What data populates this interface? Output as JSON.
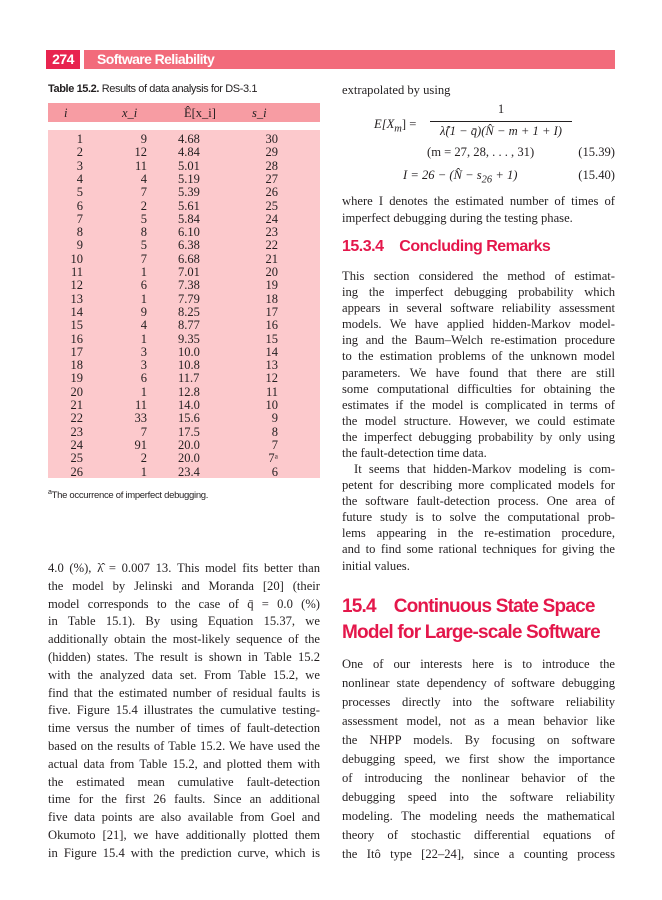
{
  "header": {
    "page_number": "274",
    "running_title": "Software Reliability"
  },
  "table": {
    "caption_label": "Table 15.2.",
    "caption_text": "Results of data analysis for DS-3.1",
    "columns": [
      "i",
      "x_i",
      "Ê[x_i]",
      "s_i"
    ],
    "rows": [
      [
        "1",
        "9",
        "4.68",
        "30"
      ],
      [
        "2",
        "12",
        "4.84",
        "29"
      ],
      [
        "3",
        "11",
        "5.01",
        "28"
      ],
      [
        "4",
        "4",
        "5.19",
        "27"
      ],
      [
        "5",
        "7",
        "5.39",
        "26"
      ],
      [
        "6",
        "2",
        "5.61",
        "25"
      ],
      [
        "7",
        "5",
        "5.84",
        "24"
      ],
      [
        "8",
        "8",
        "6.10",
        "23"
      ],
      [
        "9",
        "5",
        "6.38",
        "22"
      ],
      [
        "10",
        "7",
        "6.68",
        "21"
      ],
      [
        "11",
        "1",
        "7.01",
        "20"
      ],
      [
        "12",
        "6",
        "7.38",
        "19"
      ],
      [
        "13",
        "1",
        "7.79",
        "18"
      ],
      [
        "14",
        "9",
        "8.25",
        "17"
      ],
      [
        "15",
        "4",
        "8.77",
        "16"
      ],
      [
        "16",
        "1",
        "9.35",
        "15"
      ],
      [
        "17",
        "3",
        "10.0",
        "14"
      ],
      [
        "18",
        "3",
        "10.8",
        "13"
      ],
      [
        "19",
        "6",
        "11.7",
        "12"
      ],
      [
        "20",
        "1",
        "12.8",
        "11"
      ],
      [
        "21",
        "11",
        "14.0",
        "10"
      ],
      [
        "22",
        "33",
        "15.6",
        "9"
      ],
      [
        "23",
        "7",
        "17.5",
        "8"
      ],
      [
        "24",
        "91",
        "20.0",
        "7"
      ],
      [
        "25",
        "2",
        "20.0",
        "7ᵃ"
      ],
      [
        "26",
        "1",
        "23.4",
        "6"
      ]
    ],
    "footnote_mark": "a",
    "footnote": "The occurrence of imperfect debugging."
  },
  "left_paragraph": [
    "4.0 (%), λ̂ = 0.007 13. This model fits better than",
    "the model by Jelinski and Moranda [20] (their",
    "model corresponds to the case of q̄ = 0.0 (%)",
    "in Table 15.1). By using Equation 15.37, we",
    "additionally obtain the most-likely sequence of the",
    "(hidden) states. The result is shown in Table 15.2",
    "with the analyzed data set. From Table 15.2, we",
    "find that the estimated number of residual faults is",
    "five. Figure 15.4 illustrates the cumulative testing-",
    "time versus the number of times of fault-detection",
    "based on the results of Table 15.2. We have used the",
    "actual data from Table 15.2, and plotted them with",
    "the estimated mean cumulative fault-detection",
    "time for the first 26 faults. Since an additional",
    "five data points are also available from Goel and",
    "Okumoto [21], we have additionally plotted them",
    "in Figure 15.4 with the prediction curve, which is"
  ],
  "right": {
    "intro": "extrapolated by using",
    "eq1_lhs": "E[X",
    "eq1_sub": "m",
    "eq1_num": "1",
    "eq1_den": "λ̂(1 − q̄)(N̂ − m + 1 + I)",
    "eq1_range": "(m = 27, 28, . . . , 31)",
    "eq1_number": "(15.39)",
    "eq2": "I = 26 − (N̂ − s",
    "eq2_sub": "26",
    "eq2_end": " + 1)",
    "eq2_number": "(15.40)",
    "where_lines": [
      "where I denotes the estimated number of times of",
      "imperfect debugging during the testing phase."
    ],
    "section_1": "15.3.4    Concluding Remarks",
    "para1": [
      "This section considered the method of estimat-",
      "ing the imperfect debugging probability which",
      "appears in several software reliability assessment",
      "models. We have applied hidden-Markov model-",
      "ing and the Baum–Welch re-estimation procedure",
      "to the estimation problems of the unknown model",
      "parameters. We have found that there are still",
      "some computational difficulties for obtaining the",
      "estimates if the model is complicated in terms of",
      "the model structure. However, we could estimate",
      "the imperfect debugging probability by only using",
      "the fault-detection time data."
    ],
    "para2": [
      "It seems that hidden-Markov modeling is com-",
      "petent for describing more complicated models for",
      "the software fault-detection process. One area of",
      "future study is to solve the computational prob-",
      "lems appearing in the re-estimation procedure,",
      "and to find some rational techniques for giving the",
      "initial values."
    ],
    "section_2_line1": "15.4    Continuous State Space",
    "section_2_line2": "Model for Large-scale Software",
    "para3": [
      "One of our interests here is to introduce the",
      "nonlinear state dependency of software debugging",
      "processes directly into the software reliability",
      "assessment model, not as a mean behavior like",
      "the NHPP models. By focusing on software",
      "debugging speed, we first show the importance",
      "of introducing the nonlinear behavior of the",
      "debugging speed into the software reliability",
      "modeling. The modeling needs the mathematical",
      "theory of stochastic differential equations of",
      "the Itô type [22–24], since a counting process"
    ]
  },
  "colors": {
    "accent": "#e4174b",
    "header_number_bg": "#e8244f",
    "header_title_bg": "#f26b7b",
    "table_header_bg": "#f79ca3",
    "table_body_bg": "#fcc9cc"
  }
}
